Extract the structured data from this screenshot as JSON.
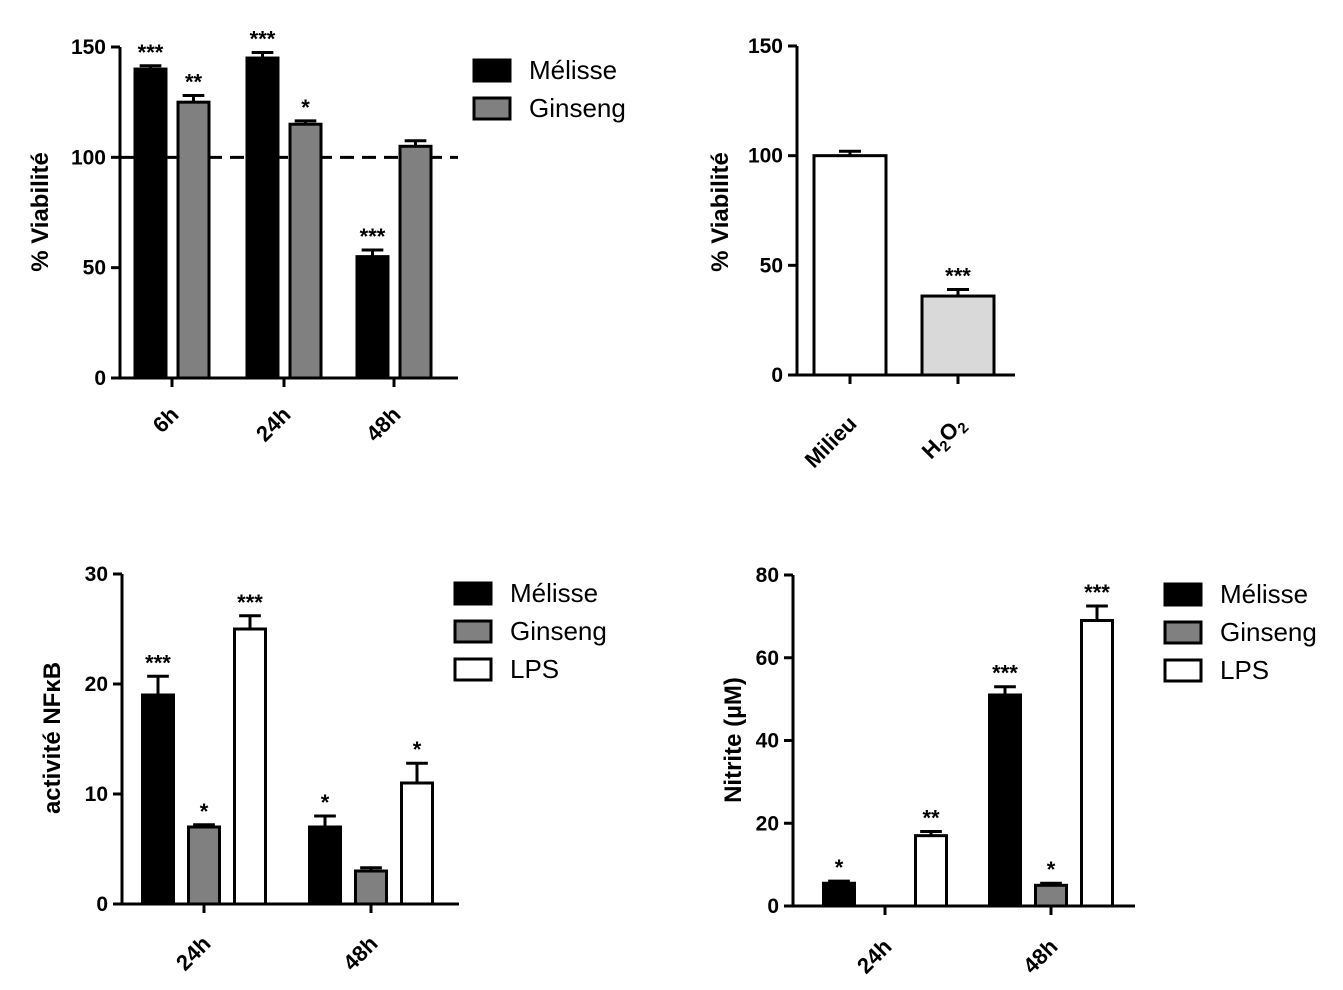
{
  "chart_data": [
    {
      "type": "bar",
      "categories": [
        "6h",
        "24h",
        "48h"
      ],
      "series": [
        {
          "name": "Mélisse",
          "color": "#000000",
          "values": [
            140,
            145,
            55
          ],
          "errors": [
            1.5,
            2.5,
            3
          ],
          "sig": [
            "***",
            "***",
            "***"
          ]
        },
        {
          "name": "Ginseng",
          "color": "#808080",
          "values": [
            125,
            115,
            105
          ],
          "errors": [
            3,
            1.5,
            2.5
          ],
          "sig": [
            "**",
            "*",
            ""
          ]
        }
      ],
      "ylabel": "% Viabilité",
      "ylim": [
        0,
        150
      ],
      "yticks": [
        0,
        50,
        100,
        150
      ],
      "reference_line": 100,
      "legend": true
    },
    {
      "type": "bar",
      "categories": [
        "Milieu",
        "H2O2"
      ],
      "series": [
        {
          "name": "",
          "colors": [
            "#ffffff",
            "#d9d9d9"
          ],
          "values": [
            100,
            36
          ],
          "errors": [
            2,
            3
          ],
          "sig": [
            "",
            "***"
          ]
        }
      ],
      "ylabel": "% Viabilité",
      "ylim": [
        0,
        150
      ],
      "yticks": [
        0,
        50,
        100,
        150
      ],
      "legend": false
    },
    {
      "type": "bar",
      "categories": [
        "24h",
        "48h"
      ],
      "series": [
        {
          "name": "Mélisse",
          "color": "#000000",
          "values": [
            19,
            7
          ],
          "errors": [
            1.7,
            1
          ],
          "sig": [
            "***",
            "*"
          ]
        },
        {
          "name": "Ginseng",
          "color": "#808080",
          "values": [
            7,
            3
          ],
          "errors": [
            0.2,
            0.3
          ],
          "sig": [
            "*",
            ""
          ]
        },
        {
          "name": "LPS",
          "color": "#ffffff",
          "values": [
            25,
            11
          ],
          "errors": [
            1.2,
            1.8
          ],
          "sig": [
            "***",
            "*"
          ]
        }
      ],
      "ylabel": "activité NFκB",
      "ylim": [
        0,
        30
      ],
      "yticks": [
        0,
        10,
        20,
        30
      ],
      "legend": true
    },
    {
      "type": "bar",
      "categories": [
        "24h",
        "48h"
      ],
      "series": [
        {
          "name": "Mélisse",
          "color": "#000000",
          "values": [
            5.5,
            51
          ],
          "errors": [
            0.5,
            2
          ],
          "sig": [
            "*",
            "***"
          ]
        },
        {
          "name": "Ginseng",
          "color": "#808080",
          "values": [
            0,
            5
          ],
          "errors": [
            0,
            0.5
          ],
          "sig": [
            "",
            "*"
          ]
        },
        {
          "name": "LPS",
          "color": "#ffffff",
          "values": [
            17,
            69
          ],
          "errors": [
            1,
            3.5
          ],
          "sig": [
            "**",
            "***"
          ]
        }
      ],
      "ylabel": "Nitrite (µM)",
      "ylim": [
        0,
        80
      ],
      "yticks": [
        0,
        20,
        40,
        60,
        80
      ],
      "legend": true
    }
  ]
}
